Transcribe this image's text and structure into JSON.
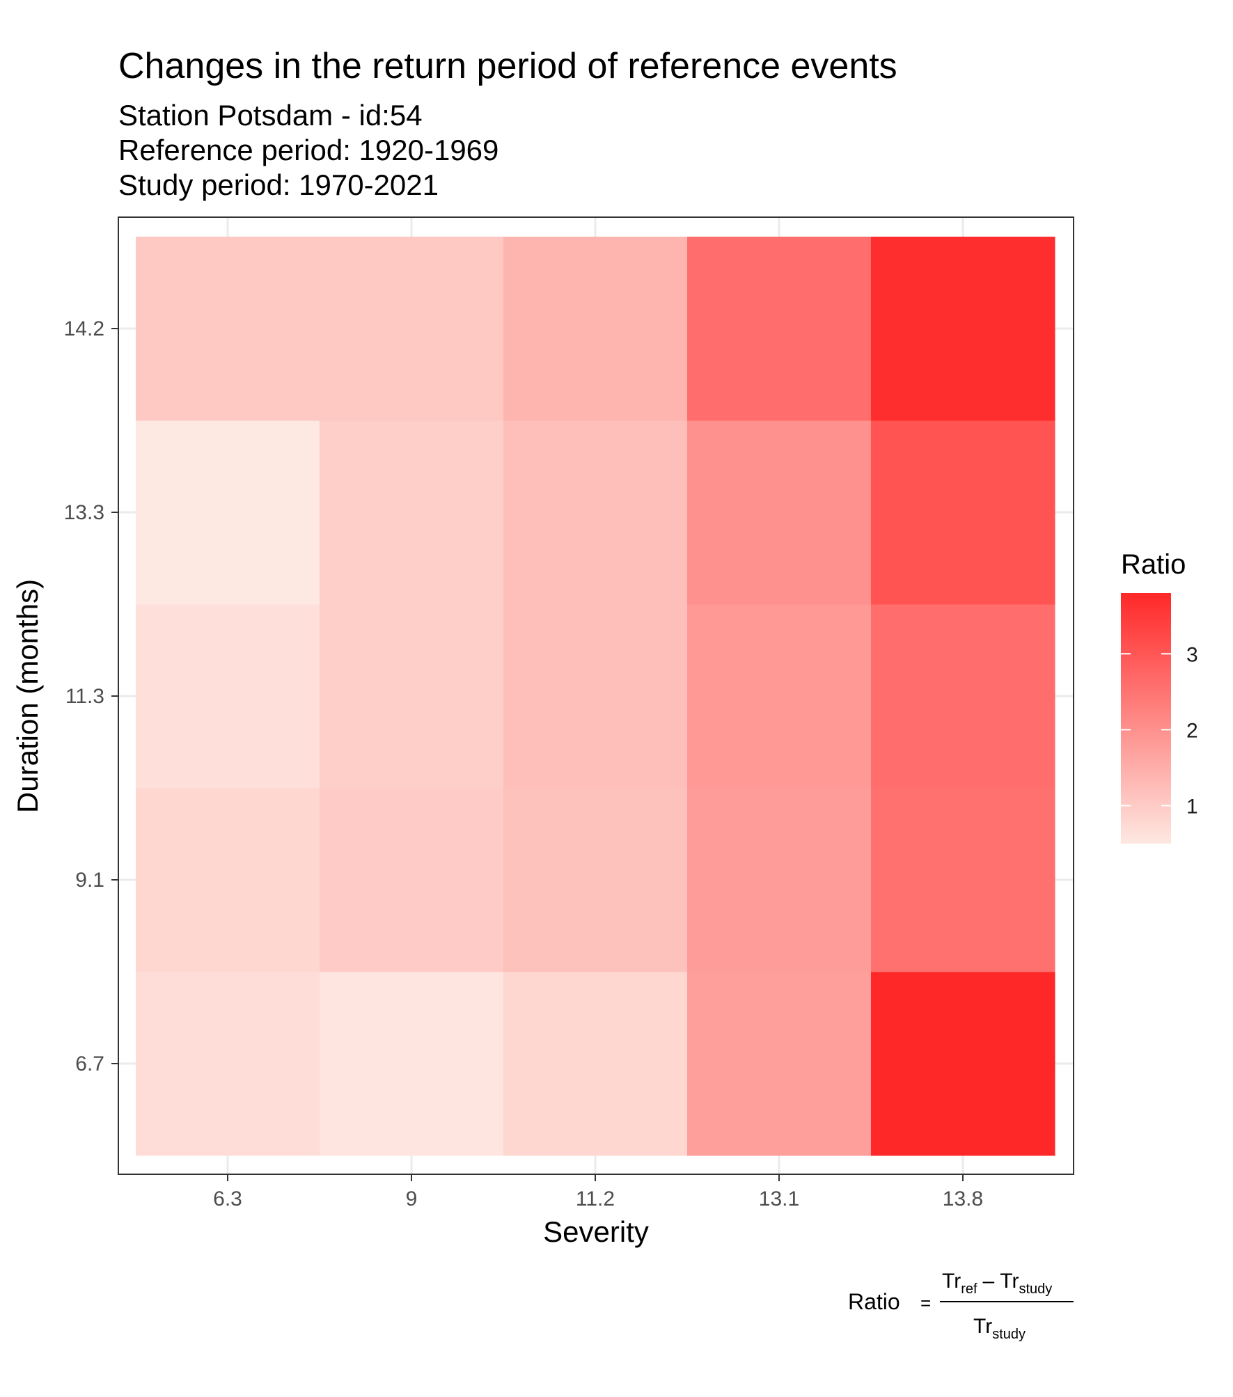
{
  "chart_data": {
    "type": "heatmap",
    "title": "Changes in the return period of reference events",
    "subtitle_lines": [
      "Station Potsdam - id:54",
      "Reference period: 1920-1969",
      "Study period: 1970-2021"
    ],
    "xlabel": "Severity",
    "ylabel": "Duration (months)",
    "x_categories": [
      "6.3",
      "9",
      "11.2",
      "13.1",
      "13.8"
    ],
    "y_categories": [
      "6.7",
      "9.1",
      "11.3",
      "13.3",
      "14.2"
    ],
    "values": [
      [
        0.7,
        0.55,
        0.8,
        1.75,
        3.8
      ],
      [
        0.8,
        1.0,
        1.15,
        1.8,
        2.55
      ],
      [
        0.65,
        0.95,
        1.2,
        1.85,
        2.6
      ],
      [
        0.5,
        0.95,
        1.2,
        2.0,
        3.05
      ],
      [
        1.05,
        1.05,
        1.4,
        2.6,
        3.7
      ]
    ],
    "grid": true,
    "legend": {
      "title": "Ratio",
      "placement": "right",
      "ticks": [
        1,
        2,
        3
      ],
      "range": [
        0.5,
        3.8
      ],
      "color_low": "#fee8e2",
      "color_high": "#ff2828"
    },
    "caption": {
      "lhs": "Ratio",
      "equals": "=",
      "numerator_a": "Tr",
      "numerator_a_sub": "ref",
      "minus": "–",
      "numerator_b": "Tr",
      "numerator_b_sub": "study",
      "denominator": "Tr",
      "denominator_sub": "study"
    }
  }
}
